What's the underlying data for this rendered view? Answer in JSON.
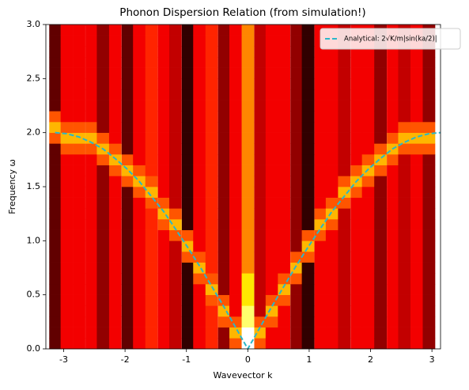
{
  "chart_data": {
    "type": "heatmap",
    "title": "Phonon Dispersion Relation (from simulation!)",
    "x_label": "Wavevector k",
    "y_label": "Frequency ω",
    "colormap": "hot",
    "zlim": [
      0,
      14
    ],
    "xlim": [
      -3.29,
      3.14
    ],
    "ylim": [
      0,
      3
    ],
    "xticks": [
      -3,
      -2,
      -1,
      0,
      1,
      2,
      3
    ],
    "yticks": [
      {
        "value": 0,
        "label": "0.0"
      },
      {
        "value": 0.5,
        "label": "0.5"
      },
      {
        "value": 1,
        "label": "1.0"
      },
      {
        "value": 1.5,
        "label": "1.5"
      },
      {
        "value": 2,
        "label": "2.0"
      },
      {
        "value": 2.5,
        "label": "2.5"
      },
      {
        "value": 3,
        "label": "3.0"
      }
    ],
    "x": [
      -3.14,
      -2.95,
      -2.75,
      -2.55,
      -2.36,
      -2.16,
      -1.96,
      -1.77,
      -1.57,
      -1.37,
      -1.18,
      -0.98,
      -0.79,
      -0.59,
      -0.39,
      -0.2,
      0,
      0.2,
      0.39,
      0.59,
      0.79,
      0.98,
      1.18,
      1.37,
      1.57,
      1.77,
      1.96,
      2.16,
      2.36,
      2.55,
      2.75,
      2.95
    ],
    "y_edges": [
      0,
      0.1,
      0.2,
      0.3,
      0.4,
      0.5,
      0.6,
      0.7,
      0.8,
      0.9,
      1,
      1.1,
      1.2,
      1.3,
      1.4,
      1.5,
      1.6,
      1.7,
      1.8,
      1.9,
      2,
      2.1,
      2.2,
      2.3,
      2.4,
      2.5,
      2.6,
      2.7,
      2.8,
      2.9,
      3
    ],
    "z": [
      [
        2,
        2,
        2,
        2,
        2,
        2,
        2,
        2,
        2,
        2,
        2,
        2,
        2,
        2,
        2,
        2,
        2,
        2,
        2,
        7,
        9,
        7,
        2,
        2,
        2,
        2,
        2,
        2,
        2,
        2
      ],
      [
        5,
        5,
        5,
        5,
        5,
        5,
        5,
        5,
        5,
        5,
        5,
        5,
        5,
        5,
        5,
        5,
        5,
        5,
        7,
        9,
        7,
        5,
        5,
        5,
        5,
        5,
        5,
        5,
        5,
        5
      ],
      [
        5,
        5,
        5,
        5,
        5,
        5,
        5,
        5,
        5,
        5,
        5,
        5,
        5,
        5,
        5,
        5,
        5,
        5,
        7,
        9,
        7,
        5,
        5,
        5,
        5,
        5,
        5,
        5,
        5,
        5
      ],
      [
        5,
        5,
        5,
        5,
        5,
        5,
        5,
        5,
        5,
        5,
        5,
        5,
        5,
        5,
        5,
        5,
        5,
        5,
        7,
        9,
        7,
        5,
        5,
        5,
        5,
        5,
        5,
        5,
        5,
        5
      ],
      [
        3,
        3,
        3,
        3,
        3,
        3,
        3,
        3,
        3,
        3,
        3,
        3,
        3,
        3,
        3,
        3,
        3,
        7,
        9,
        7,
        3,
        3,
        3,
        3,
        3,
        3,
        3,
        3,
        3,
        3
      ],
      [
        5,
        5,
        5,
        5,
        5,
        5,
        5,
        5,
        5,
        5,
        5,
        5,
        5,
        5,
        5,
        5,
        7,
        9,
        7,
        5,
        5,
        5,
        5,
        5,
        5,
        5,
        5,
        5,
        5,
        5
      ],
      [
        2,
        2,
        2,
        2,
        2,
        2,
        2,
        2,
        2,
        2,
        2,
        2,
        2,
        2,
        2,
        7,
        9,
        7,
        2,
        2,
        2,
        2,
        2,
        2,
        2,
        2,
        2,
        2,
        2,
        2
      ],
      [
        5,
        5,
        5,
        5,
        5,
        5,
        5,
        5,
        5,
        5,
        5,
        5,
        5,
        5,
        7,
        9,
        7,
        5,
        5,
        5,
        5,
        5,
        5,
        5,
        5,
        5,
        5,
        5,
        5,
        5
      ],
      [
        6,
        6,
        6,
        6,
        6,
        6,
        6,
        6,
        6,
        6,
        6,
        6,
        6,
        7,
        9,
        7,
        6,
        6,
        6,
        6,
        6,
        6,
        6,
        6,
        6,
        6,
        6,
        6,
        6,
        6
      ],
      [
        5,
        5,
        5,
        5,
        5,
        5,
        5,
        5,
        5,
        5,
        5,
        7,
        9,
        7,
        5,
        5,
        5,
        5,
        5,
        5,
        5,
        5,
        5,
        5,
        5,
        5,
        5,
        5,
        5,
        5
      ],
      [
        4,
        4,
        4,
        4,
        4,
        4,
        4,
        4,
        4,
        4,
        7,
        9,
        7,
        4,
        4,
        4,
        4,
        4,
        4,
        4,
        4,
        4,
        4,
        4,
        4,
        4,
        4,
        4,
        4,
        4
      ],
      [
        1,
        1,
        1,
        1,
        1,
        1,
        1,
        1,
        7,
        9,
        7,
        1,
        1,
        1,
        1,
        1,
        1,
        1,
        1,
        1,
        1,
        1,
        1,
        1,
        1,
        1,
        1,
        1,
        1,
        1
      ],
      [
        5,
        5,
        5,
        5,
        5,
        5,
        7,
        9,
        7,
        5,
        5,
        5,
        5,
        5,
        5,
        5,
        5,
        5,
        5,
        5,
        5,
        5,
        5,
        5,
        5,
        5,
        5,
        5,
        5,
        5
      ],
      [
        6,
        6,
        6,
        6,
        7,
        9,
        7,
        6,
        6,
        6,
        6,
        6,
        6,
        6,
        6,
        6,
        6,
        6,
        6,
        6,
        6,
        6,
        6,
        6,
        6,
        6,
        6,
        6,
        6,
        6
      ],
      [
        3,
        3,
        7,
        9,
        7,
        3,
        3,
        3,
        3,
        3,
        3,
        3,
        3,
        3,
        3,
        3,
        3,
        3,
        3,
        3,
        3,
        3,
        3,
        3,
        3,
        3,
        3,
        3,
        3,
        3
      ],
      [
        7,
        9,
        7,
        5,
        5,
        5,
        5,
        5,
        5,
        5,
        5,
        5,
        5,
        5,
        5,
        5,
        5,
        5,
        5,
        5,
        5,
        5,
        5,
        5,
        5,
        5,
        5,
        5,
        5,
        5
      ],
      [
        14,
        14,
        12,
        12,
        10,
        10,
        10,
        8,
        8,
        8,
        8,
        8,
        8,
        8,
        8,
        8,
        8,
        8,
        8,
        8,
        8,
        8,
        8,
        8,
        8,
        8,
        8,
        8,
        8,
        8
      ],
      [
        7,
        9,
        7,
        4,
        4,
        4,
        4,
        4,
        4,
        4,
        4,
        4,
        4,
        4,
        4,
        4,
        4,
        4,
        4,
        4,
        4,
        4,
        4,
        4,
        4,
        4,
        4,
        4,
        4,
        4
      ],
      [
        5,
        5,
        7,
        9,
        7,
        5,
        5,
        5,
        5,
        5,
        5,
        5,
        5,
        5,
        5,
        5,
        5,
        5,
        5,
        5,
        5,
        5,
        5,
        5,
        5,
        5,
        5,
        5,
        5,
        5
      ],
      [
        5,
        5,
        5,
        5,
        7,
        9,
        7,
        5,
        5,
        5,
        5,
        5,
        5,
        5,
        5,
        5,
        5,
        5,
        5,
        5,
        5,
        5,
        5,
        5,
        5,
        5,
        5,
        5,
        5,
        5
      ],
      [
        3,
        3,
        3,
        3,
        3,
        3,
        7,
        9,
        7,
        3,
        3,
        3,
        3,
        3,
        3,
        3,
        3,
        3,
        3,
        3,
        3,
        3,
        3,
        3,
        3,
        3,
        3,
        3,
        3,
        3
      ],
      [
        1,
        1,
        1,
        1,
        1,
        1,
        1,
        1,
        7,
        9,
        7,
        1,
        1,
        1,
        1,
        1,
        1,
        1,
        1,
        1,
        1,
        1,
        1,
        1,
        1,
        1,
        1,
        1,
        1,
        1
      ],
      [
        5,
        5,
        5,
        5,
        5,
        5,
        5,
        5,
        5,
        5,
        7,
        9,
        7,
        5,
        5,
        5,
        5,
        5,
        5,
        5,
        5,
        5,
        5,
        5,
        5,
        5,
        5,
        5,
        5,
        5
      ],
      [
        5,
        5,
        5,
        5,
        5,
        5,
        5,
        5,
        5,
        5,
        5,
        7,
        9,
        7,
        5,
        5,
        5,
        5,
        5,
        5,
        5,
        5,
        5,
        5,
        5,
        5,
        5,
        5,
        5,
        5
      ],
      [
        4,
        4,
        4,
        4,
        4,
        4,
        4,
        4,
        4,
        4,
        4,
        4,
        4,
        7,
        9,
        7,
        4,
        4,
        4,
        4,
        4,
        4,
        4,
        4,
        4,
        4,
        4,
        4,
        4,
        4
      ],
      [
        5,
        5,
        5,
        5,
        5,
        5,
        5,
        5,
        5,
        5,
        5,
        5,
        5,
        5,
        7,
        9,
        7,
        5,
        5,
        5,
        5,
        5,
        5,
        5,
        5,
        5,
        5,
        5,
        5,
        5
      ],
      [
        5,
        5,
        5,
        5,
        5,
        5,
        5,
        5,
        5,
        5,
        5,
        5,
        5,
        5,
        5,
        7,
        9,
        7,
        5,
        5,
        5,
        5,
        5,
        5,
        5,
        5,
        5,
        5,
        5,
        5
      ],
      [
        3,
        3,
        3,
        3,
        3,
        3,
        3,
        3,
        3,
        3,
        3,
        3,
        3,
        3,
        3,
        3,
        7,
        9,
        7,
        3,
        3,
        3,
        3,
        3,
        3,
        3,
        3,
        3,
        3,
        3
      ],
      [
        5,
        5,
        5,
        5,
        5,
        5,
        5,
        5,
        5,
        5,
        5,
        5,
        5,
        5,
        5,
        5,
        5,
        7,
        9,
        7,
        5,
        5,
        5,
        5,
        5,
        5,
        5,
        5,
        5,
        5
      ],
      [
        4,
        4,
        4,
        4,
        4,
        4,
        4,
        4,
        4,
        4,
        4,
        4,
        4,
        4,
        4,
        4,
        4,
        4,
        7,
        9,
        7,
        4,
        4,
        4,
        4,
        4,
        4,
        4,
        4,
        4
      ],
      [
        5,
        5,
        5,
        5,
        5,
        5,
        5,
        5,
        5,
        5,
        5,
        5,
        5,
        5,
        5,
        5,
        5,
        5,
        7,
        9,
        7,
        5,
        5,
        5,
        5,
        5,
        5,
        5,
        5,
        5
      ],
      [
        3,
        3,
        3,
        3,
        3,
        3,
        3,
        3,
        3,
        3,
        3,
        3,
        3,
        3,
        3,
        3,
        3,
        3,
        7,
        9,
        7,
        3,
        3,
        3,
        3,
        3,
        3,
        3,
        3,
        3
      ]
    ],
    "series": [
      {
        "name": "Analytical: 2√K/m|sin(ka/2)|",
        "color": "#2ab7c9",
        "x": [
          -3.14,
          -2.95,
          -2.75,
          -2.55,
          -2.36,
          -2.16,
          -1.96,
          -1.77,
          -1.57,
          -1.37,
          -1.18,
          -0.98,
          -0.79,
          -0.59,
          -0.39,
          -0.2,
          0,
          0.2,
          0.39,
          0.59,
          0.79,
          0.98,
          1.18,
          1.37,
          1.57,
          1.77,
          1.96,
          2.16,
          2.36,
          2.55,
          2.75,
          2.95,
          3.14
        ],
        "values": [
          2,
          1.99,
          1.96,
          1.91,
          1.85,
          1.76,
          1.66,
          1.55,
          1.41,
          1.27,
          1.11,
          0.94,
          0.77,
          0.58,
          0.39,
          0.2,
          0,
          0.2,
          0.39,
          0.58,
          0.77,
          0.94,
          1.11,
          1.27,
          1.41,
          1.55,
          1.66,
          1.76,
          1.85,
          1.91,
          1.96,
          1.99,
          2
        ]
      }
    ],
    "legend": "upper right"
  }
}
